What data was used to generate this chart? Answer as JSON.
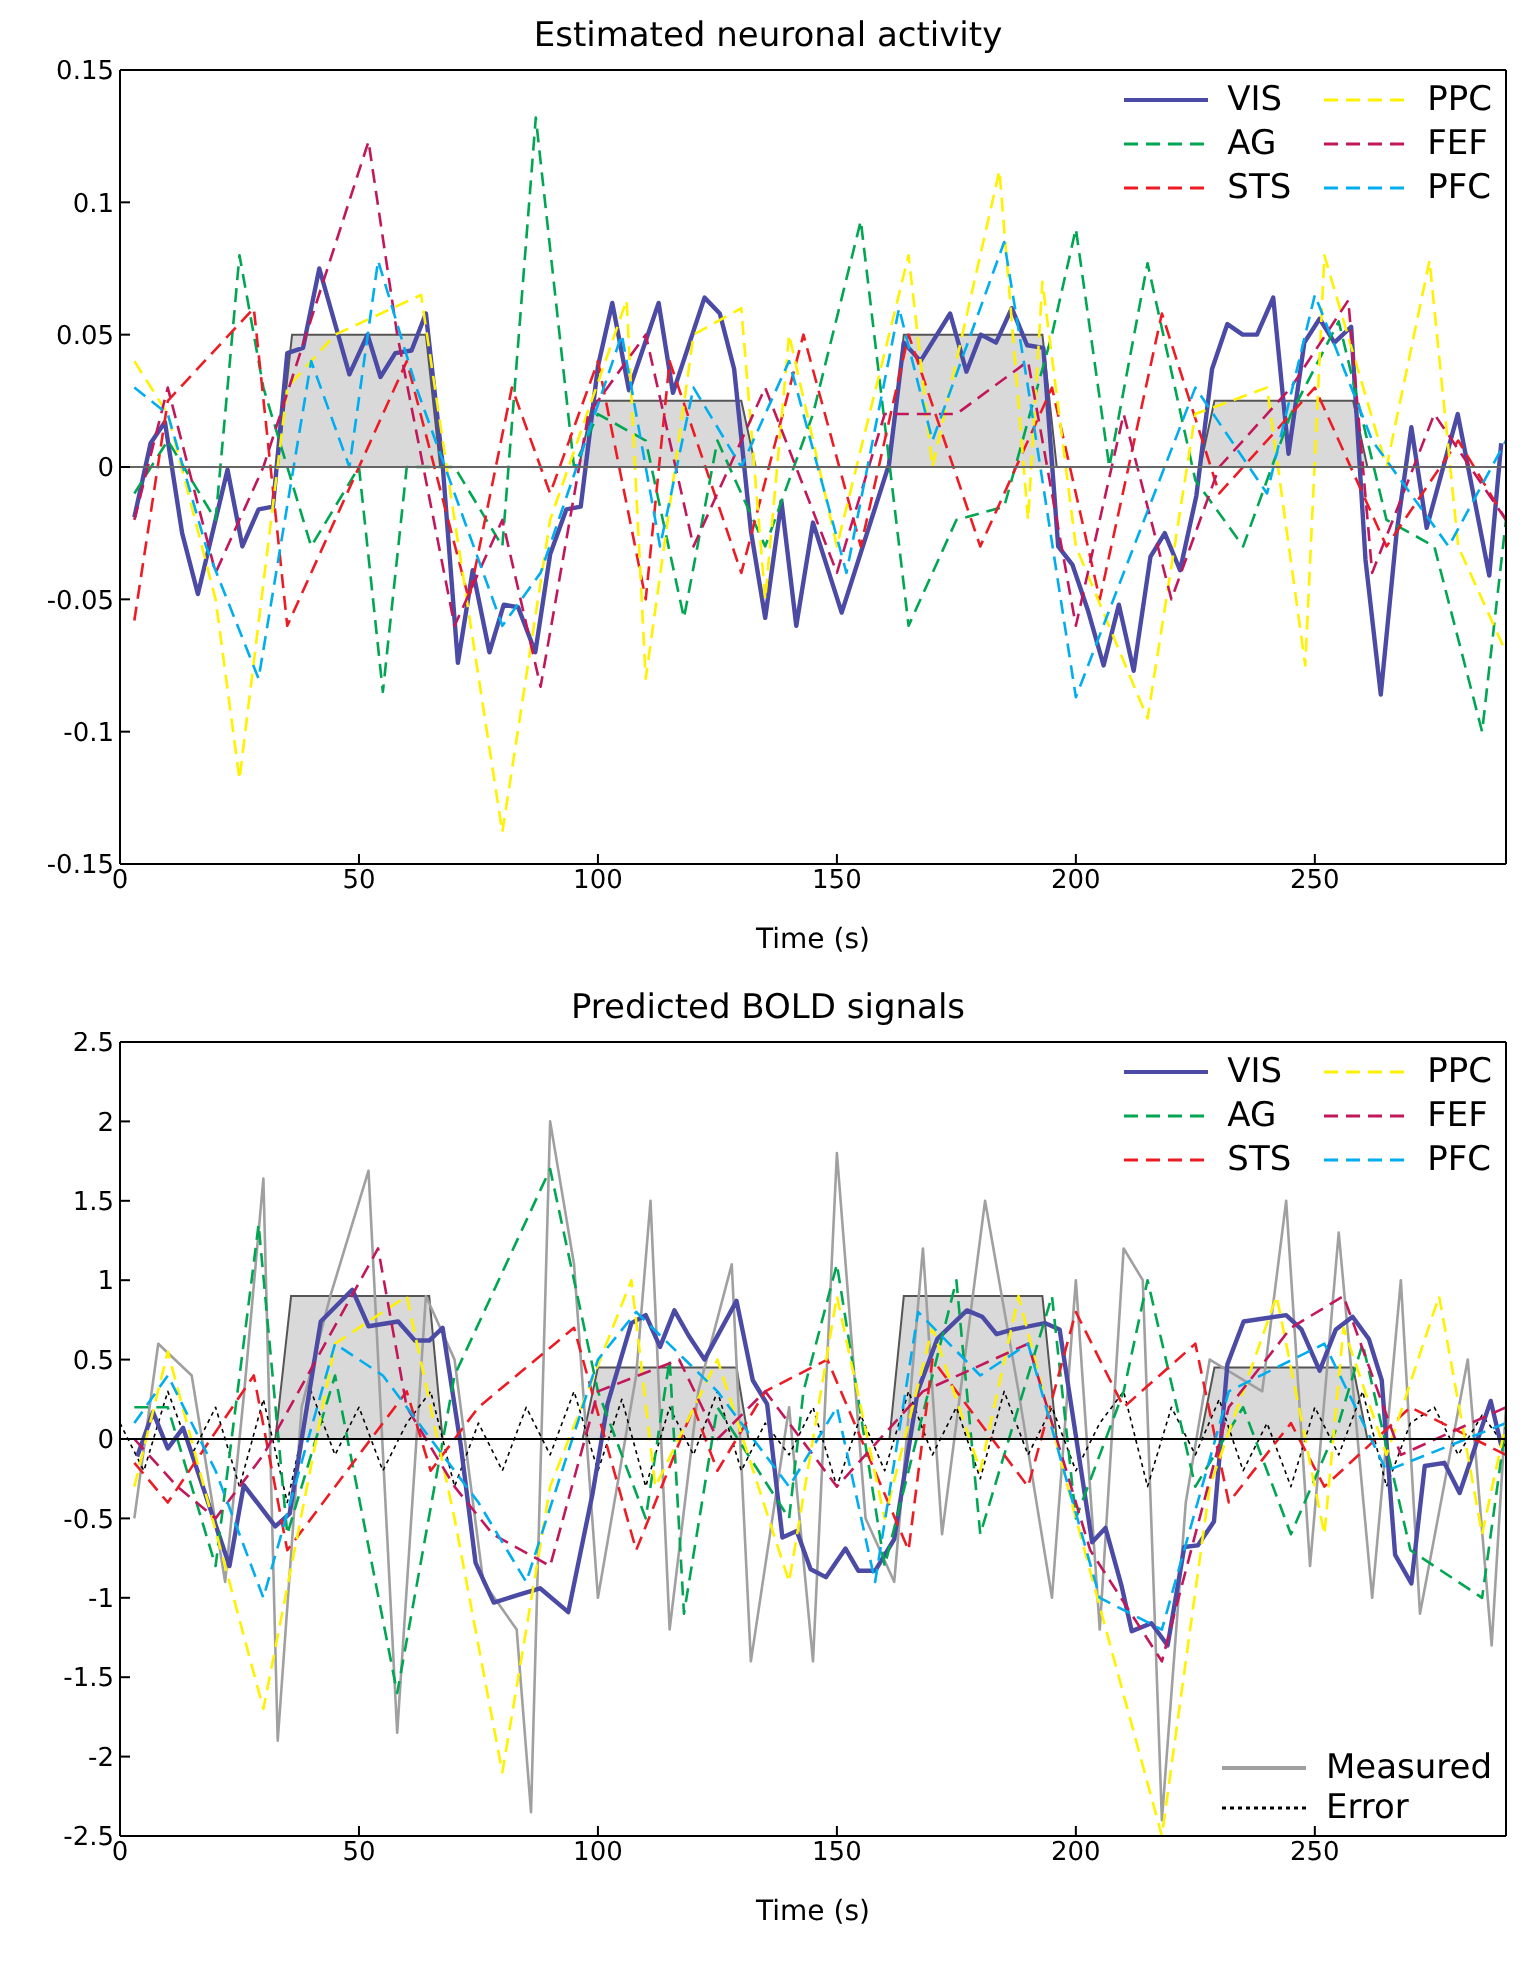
{
  "chart_data": [
    {
      "type": "line",
      "title": "Estimated neuronal activity",
      "xlabel": "Time (s)",
      "xlim": [
        0,
        290
      ],
      "xticks": [
        0,
        50,
        100,
        150,
        200,
        250
      ],
      "ylim": [
        -0.15,
        0.15
      ],
      "yticks": [
        -0.15,
        -0.1,
        -0.05,
        0,
        0.05,
        0.1,
        0.15
      ],
      "legend": "top right",
      "ref_lines": [
        {
          "axis": "y",
          "value": 0,
          "color": "#666666"
        }
      ],
      "series": [
        {
          "type": "area",
          "color": "#d9d9d9",
          "x": [
            0,
            33,
            36,
            64,
            67,
            96,
            99,
            130,
            133,
            161,
            164,
            193,
            196,
            226,
            229,
            258,
            261,
            290
          ],
          "values": [
            0,
            0,
            0.05,
            0.05,
            0,
            0,
            0.025,
            0.025,
            0,
            0,
            0.05,
            0.05,
            0,
            0,
            0.025,
            0.025,
            0,
            0
          ]
        },
        {
          "name": "VIS",
          "color": "#4b4ba6",
          "line_style": "solid",
          "x": [
            3,
            6.4,
            9.4,
            13,
            16.3,
            22.5,
            25.6,
            29,
            32,
            35,
            38.3,
            41.7,
            48,
            51.8,
            54.5,
            57.6,
            61,
            64,
            67.5,
            70.7,
            73.8,
            77.3,
            80.3,
            83.3,
            86.9,
            90,
            93.4,
            96.4,
            100,
            103,
            106.5,
            112.7,
            115.7,
            122.3,
            125.5,
            128.5,
            132,
            135,
            138.4,
            141.5,
            145,
            151,
            160.9,
            164,
            167.5,
            173.7,
            177.1,
            180.1,
            183.3,
            186.6,
            189.8,
            193.2,
            196.3,
            199.3,
            202.5,
            205.8,
            209,
            212.1,
            215.6,
            218.6,
            221.8,
            225.2,
            228.5,
            231.7,
            234.9,
            237.9,
            241.3,
            244.5,
            247.8,
            251,
            254.1,
            257.6,
            260.6,
            263.8,
            267.1,
            270.2,
            273.4,
            279.9,
            286.5,
            289
          ],
          "values": [
            -0.019,
            0.009,
            0.017,
            -0.025,
            -0.048,
            -0.001,
            -0.03,
            -0.016,
            -0.015,
            0.043,
            0.045,
            0.075,
            0.035,
            0.05,
            0.034,
            0.043,
            0.044,
            0.058,
            0.001,
            -0.074,
            -0.039,
            -0.07,
            -0.052,
            -0.053,
            -0.07,
            -0.033,
            -0.016,
            -0.015,
            0.038,
            0.062,
            0.029,
            0.062,
            0.028,
            0.064,
            0.058,
            0.037,
            -0.024,
            -0.057,
            -0.013,
            -0.06,
            -0.021,
            -0.055,
            0.001,
            0.047,
            0.04,
            0.058,
            0.036,
            0.05,
            0.047,
            0.06,
            0.046,
            0.045,
            -0.03,
            -0.037,
            -0.054,
            -0.075,
            -0.052,
            -0.077,
            -0.034,
            -0.025,
            -0.039,
            -0.011,
            0.037,
            0.054,
            0.05,
            0.05,
            0.064,
            0.005,
            0.047,
            0.056,
            0.047,
            0.053,
            -0.035,
            -0.086,
            -0.025,
            0.015,
            -0.023,
            0.02,
            -0.041,
            0.009
          ]
        },
        {
          "name": "AG",
          "color": "#00a651",
          "line_style": "dashed",
          "x": [
            3,
            10,
            20,
            25,
            30,
            40,
            50,
            55,
            60,
            70,
            80,
            87,
            95,
            100,
            110,
            118,
            125,
            135,
            145,
            155,
            165,
            175,
            185,
            195,
            200,
            207,
            215,
            225,
            235,
            245,
            255,
            265,
            275,
            285,
            290
          ],
          "values": [
            -0.01,
            0.01,
            -0.02,
            0.08,
            0.03,
            -0.03,
            0,
            -0.085,
            0,
            0,
            -0.03,
            0.132,
            0,
            0.02,
            0.01,
            -0.057,
            0.01,
            -0.03,
            0.02,
            0.093,
            -0.06,
            -0.02,
            -0.015,
            0.05,
            0.09,
            0,
            0.077,
            -0.005,
            -0.03,
            0.02,
            0.055,
            -0.02,
            -0.03,
            -0.1,
            -0.02
          ]
        },
        {
          "name": "STS",
          "color": "#ed1c24",
          "line_style": "dashed",
          "x": [
            3,
            10,
            28,
            35,
            60,
            73,
            82,
            90,
            100,
            110,
            115,
            130,
            143,
            155,
            165,
            180,
            195,
            205,
            218,
            230,
            250,
            265,
            280,
            290
          ],
          "values": [
            -0.058,
            0.025,
            0.06,
            -0.06,
            0.04,
            -0.05,
            0.03,
            -0.01,
            0.04,
            -0.05,
            0.04,
            -0.04,
            0.05,
            -0.03,
            0.05,
            -0.03,
            0.03,
            -0.05,
            0.058,
            -0.01,
            0.03,
            -0.03,
            0.01,
            -0.02
          ]
        },
        {
          "name": "PPC",
          "color": "#fff200",
          "line_style": "dashed",
          "x": [
            3,
            10,
            20,
            25,
            35,
            45,
            63,
            70,
            80,
            90,
            106,
            110,
            120,
            130,
            135,
            140,
            150,
            165,
            170,
            184,
            190,
            193,
            200,
            215,
            225,
            240,
            248,
            252,
            265,
            274,
            280,
            290
          ],
          "values": [
            0.04,
            0.02,
            -0.05,
            -0.118,
            0.03,
            0.05,
            0.065,
            -0.02,
            -0.138,
            -0.02,
            0.063,
            -0.08,
            0.05,
            0.06,
            -0.05,
            0.05,
            -0.03,
            0.08,
            0,
            0.112,
            -0.02,
            0.07,
            -0.03,
            -0.095,
            0.02,
            0.03,
            -0.075,
            0.08,
            0,
            0.078,
            -0.03,
            -0.07
          ]
        },
        {
          "name": "FEF",
          "color": "#c2185b",
          "line_style": "dashed",
          "x": [
            3,
            10,
            20,
            30,
            52,
            58,
            70,
            80,
            88,
            98,
            110,
            120,
            135,
            150,
            160,
            175,
            190,
            200,
            210,
            220,
            230,
            245,
            257,
            262,
            275,
            290
          ],
          "values": [
            -0.02,
            0.03,
            -0.04,
            0,
            0.123,
            0.05,
            -0.06,
            -0.02,
            -0.083,
            0.02,
            0.05,
            -0.03,
            0.03,
            -0.04,
            0.02,
            0.02,
            0.04,
            -0.06,
            0.02,
            -0.05,
            0,
            0.03,
            0.063,
            -0.04,
            0.02,
            -0.02
          ]
        },
        {
          "name": "PFC",
          "color": "#00aeef",
          "line_style": "dashed",
          "x": [
            3,
            10,
            18,
            29,
            40,
            48,
            54,
            62,
            72,
            80,
            88,
            105,
            113,
            120,
            130,
            140,
            152,
            163,
            170,
            185,
            190,
            200,
            210,
            225,
            240,
            250,
            262,
            278,
            290
          ],
          "values": [
            0.03,
            0.02,
            -0.03,
            -0.08,
            0.04,
            0,
            0.078,
            0.03,
            -0.02,
            -0.06,
            -0.04,
            0.05,
            -0.03,
            0.03,
            0,
            0.04,
            -0.04,
            0.06,
            0.01,
            0.085,
            0.03,
            -0.087,
            -0.04,
            0.03,
            -0.01,
            0.065,
            0.01,
            -0.03,
            0.01
          ]
        }
      ]
    },
    {
      "type": "line",
      "title": "Predicted BOLD signals",
      "xlabel": "Time (s)",
      "xlim": [
        0,
        290
      ],
      "xticks": [
        0,
        50,
        100,
        150,
        200,
        250
      ],
      "ylim": [
        -2.5,
        2.5
      ],
      "yticks": [
        -2.5,
        -2,
        -1.5,
        -1,
        -0.5,
        0,
        0.5,
        1,
        1.5,
        2,
        2.5
      ],
      "legend": "top right",
      "ref_lines": [
        {
          "axis": "y",
          "value": 0,
          "color": "#000000"
        }
      ],
      "series": [
        {
          "type": "area",
          "color": "#d9d9d9",
          "x": [
            0,
            32.5,
            35.8,
            64.7,
            67.5,
            96.8,
            100,
            129,
            131.5,
            161,
            164,
            193,
            196,
            226,
            229,
            258,
            261,
            290
          ],
          "values": [
            0,
            0,
            0.9,
            0.9,
            0,
            0,
            0.45,
            0.45,
            0,
            0,
            0.9,
            0.9,
            0,
            0,
            0.45,
            0.45,
            0,
            0
          ]
        },
        {
          "name": "Measured",
          "color": "#a0a0a0",
          "line_style": "solid",
          "x": [
            3,
            8,
            15,
            22,
            26,
            30,
            33,
            38,
            44,
            52,
            58,
            64,
            70,
            76,
            83,
            86,
            90,
            95,
            100,
            108,
            111,
            115,
            121,
            128,
            132,
            140,
            145,
            150,
            156,
            162,
            168,
            172,
            181,
            188,
            195,
            200,
            205,
            210,
            214,
            218,
            223,
            228,
            239,
            244,
            249,
            255,
            262,
            268,
            272,
            282,
            287,
            290
          ],
          "values": [
            -0.5,
            0.6,
            0.4,
            -0.9,
            0.3,
            1.64,
            -1.9,
            0.2,
            0.9,
            1.69,
            -1.85,
            0.9,
            0.5,
            -0.9,
            -1.2,
            -2.35,
            2,
            1.1,
            -1,
            0.4,
            1.5,
            -1.2,
            0.3,
            1.1,
            -1.4,
            0.2,
            -1.4,
            1.8,
            -0.5,
            -0.9,
            1.2,
            -0.6,
            1.5,
            0.3,
            -1,
            1,
            -1.2,
            1.2,
            1,
            -2.4,
            -0.4,
            0.5,
            0.3,
            1.5,
            -0.8,
            1.3,
            -1,
            1,
            -1.1,
            0.5,
            -1.3,
            0.2
          ]
        },
        {
          "name": "Error",
          "color": "#000000",
          "line_style": "dotted",
          "x": [
            0,
            5,
            10,
            15,
            20,
            25,
            30,
            35,
            40,
            45,
            50,
            55,
            60,
            65,
            70,
            75,
            80,
            85,
            90,
            95,
            100,
            105,
            110,
            115,
            120,
            125,
            130,
            135,
            140,
            145,
            150,
            155,
            160,
            165,
            170,
            175,
            180,
            185,
            190,
            195,
            200,
            205,
            210,
            215,
            220,
            225,
            230,
            235,
            240,
            245,
            250,
            255,
            260,
            265,
            270,
            275,
            280,
            285,
            290
          ],
          "values": [
            0.1,
            -0.2,
            0.3,
            -0.1,
            0.2,
            -0.3,
            0.25,
            -0.4,
            0.3,
            -0.1,
            0.2,
            -0.2,
            0.1,
            0.3,
            -0.3,
            0.1,
            -0.2,
            0.2,
            -0.1,
            0.3,
            -0.2,
            0.25,
            -0.3,
            0.2,
            -0.1,
            0.3,
            -0.2,
            0.1,
            -0.1,
            0.2,
            -0.3,
            0.15,
            -0.2,
            0.3,
            -0.1,
            0.2,
            -0.25,
            0.3,
            -0.1,
            0.2,
            -0.2,
            0.1,
            0.3,
            -0.3,
            0.2,
            -0.1,
            0.25,
            -0.2,
            0.1,
            -0.3,
            0.2,
            -0.1,
            0.3,
            -0.3,
            0.1,
            0.2,
            -0.1,
            0.15,
            -0.05
          ]
        },
        {
          "name": "VIS",
          "color": "#4b4ba6",
          "line_style": "solid",
          "x": [
            3.6,
            6.9,
            10,
            13.2,
            22.9,
            25.9,
            32.5,
            35.5,
            42,
            48.6,
            52,
            58.2,
            61.7,
            64.7,
            67.5,
            71.3,
            74.4,
            78.2,
            83.5,
            87.9,
            93.8,
            98.9,
            102,
            107,
            110,
            113,
            116,
            119,
            122.3,
            129,
            132.4,
            135.4,
            138.6,
            141.6,
            144.5,
            147.7,
            151.8,
            154.5,
            158,
            162,
            166.9,
            171,
            177.2,
            180.4,
            183.4,
            186.9,
            193.5,
            196.6,
            200,
            203.4,
            206.2,
            209.6,
            211.7,
            215.8,
            219.2,
            222.7,
            225.5,
            228.9,
            231.7,
            235.1,
            244,
            247.2,
            251,
            254.4,
            257.9,
            261.3,
            264,
            266.8,
            270.2,
            273,
            277.1,
            280.3,
            286.8,
            289
          ],
          "values": [
            -0.11,
            0.17,
            -0.06,
            0.07,
            -0.8,
            -0.29,
            -0.55,
            -0.47,
            0.74,
            0.94,
            0.71,
            0.74,
            0.62,
            0.62,
            0.7,
            -0.04,
            -0.78,
            -1.03,
            -0.98,
            -0.94,
            -1.09,
            -0.34,
            0.22,
            0.73,
            0.78,
            0.58,
            0.81,
            0.65,
            0.5,
            0.87,
            0.37,
            0.22,
            -0.62,
            -0.58,
            -0.82,
            -0.87,
            -0.69,
            -0.83,
            -0.83,
            -0.63,
            0.3,
            0.63,
            0.81,
            0.77,
            0.66,
            0.69,
            0.73,
            0.69,
            0.02,
            -0.65,
            -0.56,
            -0.93,
            -1.21,
            -1.16,
            -1.3,
            -0.68,
            -0.67,
            -0.52,
            0.47,
            0.74,
            0.78,
            0.69,
            0.43,
            0.69,
            0.77,
            0.63,
            0.37,
            -0.73,
            -0.91,
            -0.17,
            -0.15,
            -0.34,
            0.24,
            -0.04
          ]
        },
        {
          "name": "AG",
          "color": "#00a651",
          "line_style": "dashed",
          "x": [
            3,
            10,
            20,
            29,
            35,
            45,
            58,
            70,
            90,
            100,
            110,
            115,
            118,
            125,
            140,
            143,
            150,
            160,
            175,
            180,
            195,
            200,
            210,
            215,
            225,
            235,
            245,
            255,
            260,
            270,
            285,
            290
          ],
          "values": [
            0.2,
            0.2,
            -0.8,
            1.35,
            -0.6,
            0.4,
            -1.6,
            0.4,
            1.7,
            0.3,
            -0.5,
            0.5,
            -1.1,
            0.2,
            -0.5,
            0.3,
            1.1,
            -0.8,
            1,
            -0.6,
            0.9,
            -0.5,
            0.3,
            1,
            -0.3,
            0.2,
            -0.6,
            0.1,
            0.6,
            -0.7,
            -1,
            0.1
          ]
        },
        {
          "name": "STS",
          "color": "#ed1c24",
          "line_style": "dashed",
          "x": [
            3,
            10,
            28,
            35,
            60,
            65,
            75,
            95,
            108,
            120,
            125,
            135,
            148,
            165,
            170,
            190,
            200,
            210,
            225,
            232,
            245,
            252,
            270,
            290
          ],
          "values": [
            -0.15,
            -0.4,
            0.4,
            -0.7,
            0.3,
            -0.2,
            0.2,
            0.7,
            -0.7,
            0.2,
            -0.2,
            0.3,
            0.5,
            -0.7,
            0.5,
            -0.3,
            0.8,
            0.2,
            0.6,
            -0.4,
            0.1,
            -0.3,
            0.2,
            -0.1
          ]
        },
        {
          "name": "PPC",
          "color": "#fff200",
          "line_style": "dashed",
          "x": [
            3,
            10,
            22,
            30,
            45,
            60,
            70,
            80,
            90,
            107,
            112,
            125,
            140,
            150,
            160,
            170,
            180,
            188,
            200,
            218,
            228,
            242,
            252,
            256,
            265,
            276,
            285,
            290
          ],
          "values": [
            -0.3,
            0.55,
            -0.8,
            -1.7,
            0.6,
            0.9,
            -0.5,
            -2.1,
            -0.3,
            1,
            -0.3,
            0.5,
            -0.9,
            0.9,
            -0.5,
            0.7,
            -0.2,
            0.9,
            -0.5,
            -2.5,
            -0.3,
            0.9,
            -0.6,
            0.7,
            -0.1,
            0.9,
            -0.6,
            0.1
          ]
        },
        {
          "name": "FEF",
          "color": "#c2185b",
          "line_style": "dashed",
          "x": [
            3,
            12,
            20,
            30,
            54,
            60,
            70,
            78,
            90,
            100,
            117,
            125,
            135,
            150,
            168,
            190,
            203,
            218,
            232,
            245,
            256,
            268,
            290
          ],
          "values": [
            0,
            -0.3,
            -0.5,
            -0.1,
            1.2,
            0.2,
            -0.3,
            -0.6,
            -0.8,
            0.3,
            0.5,
            0,
            0.3,
            -0.3,
            0.3,
            0.6,
            -0.7,
            -1.4,
            0.2,
            0.7,
            0.9,
            -0.1,
            0.2
          ]
        },
        {
          "name": "PFC",
          "color": "#00aeef",
          "line_style": "dashed",
          "x": [
            3,
            10,
            20,
            30,
            45,
            55,
            75,
            85,
            100,
            108,
            125,
            140,
            150,
            158,
            167,
            180,
            190,
            205,
            218,
            232,
            252,
            265,
            290
          ],
          "values": [
            0.1,
            0.4,
            -0.2,
            -1,
            0.6,
            0.4,
            -0.4,
            -0.9,
            0.5,
            0.8,
            0.3,
            -0.3,
            0.2,
            -0.9,
            0.8,
            0.4,
            0.6,
            -1,
            -1.2,
            0.3,
            0.6,
            -0.2,
            0.1
          ]
        }
      ]
    }
  ]
}
